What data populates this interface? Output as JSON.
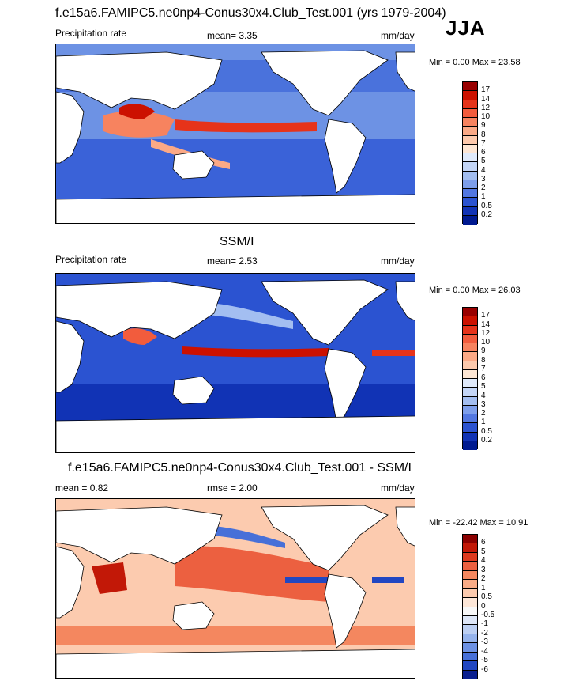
{
  "season": "JJA",
  "chart_data": [
    {
      "type": "heatmap",
      "title": "f.e15a6.FAMIPC5.ne0np4-Conus30x4.Club_Test.001 (yrs 1979-2004)",
      "left_label": "Precipitation rate",
      "stat_label": "mean=  3.35",
      "units": "mm/day",
      "minmax": "Min =   0.00 Max =  23.58",
      "levels": [
        "17",
        "14",
        "12",
        "10",
        "9",
        "8",
        "7",
        "6",
        "5",
        "4",
        "3",
        "2",
        "1",
        "0.5",
        "0.2"
      ],
      "colors": [
        "#990000",
        "#cc1100",
        "#e6331a",
        "#f25c3d",
        "#f7835f",
        "#fba986",
        "#fdc9ac",
        "#fde6d4",
        "#e0eafb",
        "#c4d6f7",
        "#a3bef1",
        "#7d9eeb",
        "#5277e1",
        "#2b53d1",
        "#1133b5",
        "#001a90"
      ]
    },
    {
      "type": "heatmap",
      "title": "SSM/I",
      "left_label": "Precipitation rate",
      "stat_label": "mean=  2.53",
      "units": "mm/day",
      "minmax": "Min =   0.00 Max =  26.03",
      "levels": [
        "17",
        "14",
        "12",
        "10",
        "9",
        "8",
        "7",
        "6",
        "5",
        "4",
        "3",
        "2",
        "1",
        "0.5",
        "0.2"
      ],
      "colors": [
        "#990000",
        "#cc1100",
        "#e6331a",
        "#f25c3d",
        "#f7835f",
        "#fba986",
        "#fdc9ac",
        "#fde6d4",
        "#e0eafb",
        "#c4d6f7",
        "#a3bef1",
        "#7d9eeb",
        "#5277e1",
        "#2b53d1",
        "#1133b5",
        "#001a90"
      ]
    },
    {
      "type": "heatmap",
      "title": "f.e15a6.FAMIPC5.ne0np4-Conus30x4.Club_Test.001 - SSM/I",
      "left_label": "mean =   0.82",
      "stat_label": "rmse =   2.00",
      "units": "mm/day",
      "minmax": "Min = -22.42 Max =  10.91",
      "levels": [
        "6",
        "5",
        "4",
        "3",
        "2",
        "1",
        "0.5",
        "0",
        "-0.5",
        "-1",
        "-2",
        "-3",
        "-4",
        "-5",
        "-6"
      ],
      "colors": [
        "#8b0000",
        "#c21807",
        "#dd3a1f",
        "#ec6040",
        "#f4875f",
        "#f9ab86",
        "#fccbaf",
        "#fde7d8",
        "#f8f8f8",
        "#dde6f7",
        "#bccff2",
        "#95b3ec",
        "#6d92e4",
        "#4770d8",
        "#2147c2",
        "#0a1f8f"
      ]
    }
  ]
}
